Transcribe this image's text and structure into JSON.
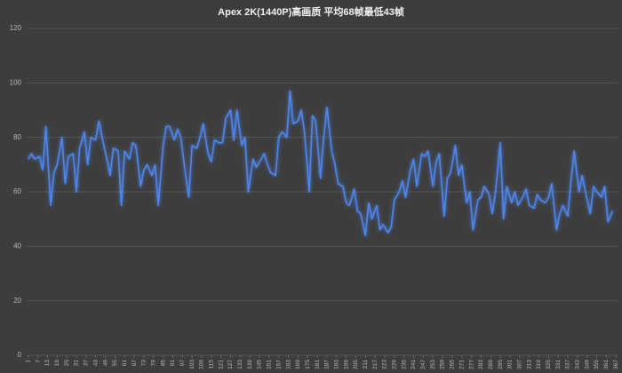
{
  "chart_data": {
    "type": "line",
    "title": "Apex 2K(1440P)高画质 平均68帧最低43帧",
    "color": "#4f86ec",
    "grid": true,
    "xlim": [
      0,
      368
    ],
    "ylim": [
      0,
      120
    ],
    "yticks": [
      0,
      20,
      40,
      60,
      80,
      100,
      120
    ],
    "xticks": [
      1,
      7,
      13,
      19,
      25,
      31,
      37,
      43,
      49,
      55,
      61,
      67,
      73,
      79,
      85,
      91,
      97,
      103,
      109,
      115,
      121,
      127,
      133,
      139,
      145,
      151,
      157,
      163,
      169,
      175,
      181,
      187,
      193,
      199,
      205,
      211,
      217,
      223,
      229,
      235,
      241,
      247,
      253,
      259,
      265,
      271,
      277,
      283,
      289,
      295,
      301,
      307,
      313,
      319,
      325,
      331,
      337,
      343,
      349,
      355,
      361,
      367
    ],
    "x": [
      1,
      3,
      5,
      8,
      10,
      12,
      15,
      17,
      19,
      22,
      24,
      26,
      29,
      31,
      33,
      36,
      38,
      40,
      43,
      45,
      47,
      50,
      52,
      54,
      57,
      59,
      61,
      64,
      66,
      68,
      71,
      73,
      75,
      78,
      80,
      82,
      85,
      87,
      89,
      92,
      94,
      96,
      99,
      101,
      103,
      106,
      108,
      110,
      113,
      115,
      117,
      120,
      122,
      124,
      127,
      129,
      131,
      134,
      136,
      138,
      141,
      143,
      145,
      148,
      150,
      152,
      155,
      157,
      159,
      162,
      164,
      166,
      169,
      171,
      173,
      176,
      178,
      180,
      183,
      185,
      187,
      190,
      192,
      194,
      197,
      199,
      201,
      204,
      206,
      208,
      211,
      213,
      215,
      218,
      220,
      222,
      225,
      227,
      229,
      232,
      234,
      236,
      239,
      241,
      243,
      246,
      248,
      250,
      253,
      255,
      257,
      260,
      262,
      264,
      267,
      269,
      271,
      274,
      276,
      278,
      281,
      283,
      285,
      288,
      290,
      292,
      295,
      297,
      299,
      302,
      304,
      306,
      309,
      311,
      313,
      316,
      318,
      320,
      323,
      325,
      327,
      330,
      332,
      334,
      337,
      339,
      341,
      344,
      346,
      348,
      351,
      353,
      355,
      358,
      360,
      362,
      365
    ],
    "values": [
      72,
      74,
      72,
      73,
      68,
      84,
      55,
      67,
      70,
      80,
      63,
      73,
      74,
      60,
      76,
      82,
      70,
      80,
      79,
      86,
      80,
      72,
      66,
      76,
      75,
      55,
      75,
      72,
      78,
      77,
      62,
      68,
      70,
      66,
      70,
      55,
      77,
      84,
      84,
      79,
      83,
      80,
      66,
      58,
      77,
      76,
      80,
      85,
      74,
      71,
      79,
      78,
      78,
      87,
      90,
      79,
      90,
      77,
      80,
      60,
      72,
      69,
      71,
      74,
      70,
      67,
      66,
      80,
      82,
      80,
      97,
      85,
      86,
      90,
      82,
      60,
      88,
      86,
      65,
      80,
      91,
      75,
      70,
      63,
      62,
      56,
      55,
      61,
      53,
      52,
      44,
      56,
      50,
      55,
      46,
      48,
      45,
      47,
      57,
      60,
      64,
      58,
      68,
      72,
      62,
      74,
      73,
      75,
      62,
      71,
      74,
      51,
      65,
      67,
      77,
      66,
      70,
      56,
      60,
      46,
      57,
      58,
      62,
      59,
      52,
      60,
      78,
      50,
      62,
      56,
      60,
      55,
      58,
      61,
      55,
      54,
      59,
      57,
      56,
      58,
      63,
      46,
      52,
      55,
      51,
      64,
      75,
      60,
      66,
      60,
      52,
      62,
      60,
      58,
      62,
      49,
      53
    ]
  }
}
